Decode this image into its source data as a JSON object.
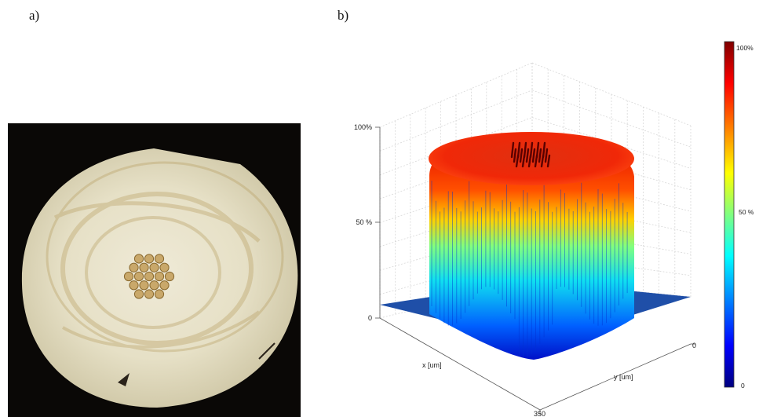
{
  "panels": {
    "a": {
      "label": "a)"
    },
    "b": {
      "label": "b)"
    }
  },
  "photo": {
    "background": "#0a0806",
    "disk_color": "#e8e4cf",
    "core_color": "#c9a86a",
    "core_count": 19
  },
  "chart_data": {
    "type": "surface",
    "title": "",
    "z_ticks": [
      "0",
      "50 %",
      "100%"
    ],
    "x_axis_label": "x [um]",
    "y_axis_label": "y [um]",
    "x_tick_labels": [
      "350"
    ],
    "y_tick_labels": [
      "0"
    ],
    "z_range": [
      0,
      100
    ],
    "colorbar": {
      "ticks": [
        "0",
        "50 %",
        "100%"
      ],
      "colormap": "jet",
      "colors": [
        "#00007f",
        "#0000ff",
        "#00ffff",
        "#ffff00",
        "#ff0000",
        "#7f0000"
      ]
    },
    "floor_color": "#1f4fa8"
  }
}
